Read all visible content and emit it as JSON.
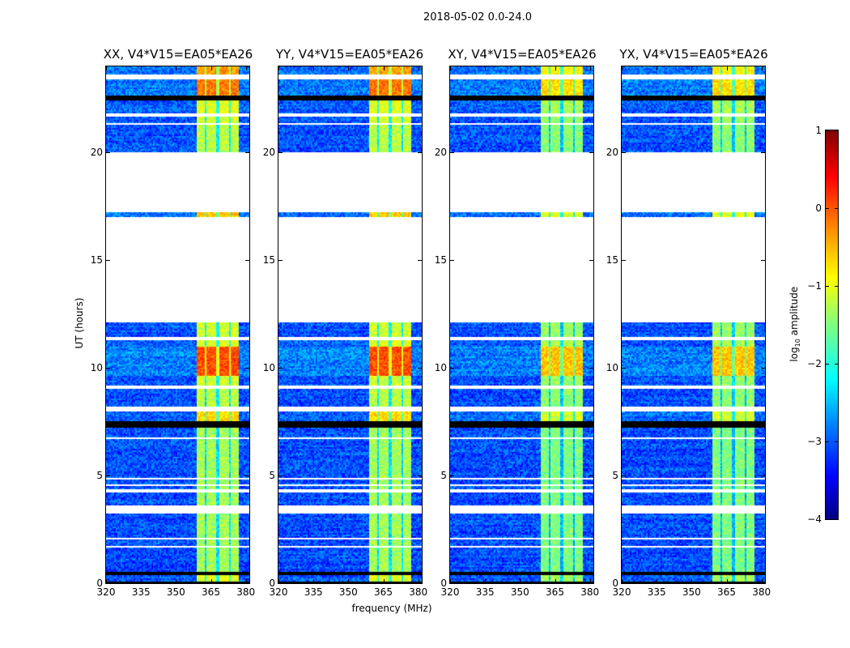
{
  "chart_data": {
    "type": "heatmap",
    "suptitle": "2018-05-02 0.0-24.0",
    "xlabel": "frequency (MHz)",
    "ylabel": "UT (hours)",
    "xlim": [
      320,
      381.5
    ],
    "ylim": [
      0,
      24
    ],
    "xticks": [
      320,
      335,
      350,
      365,
      380
    ],
    "yticks": [
      0,
      5,
      10,
      15,
      20
    ],
    "colorbar": {
      "label_prefix": "log",
      "label_sub": "10",
      "label_suffix": " amplitude",
      "range": [
        -4,
        1
      ],
      "ticks": [
        "1",
        "0",
        "−1",
        "−2",
        "−3",
        "−4"
      ],
      "tick_values": [
        1,
        0,
        -1,
        -2,
        -3,
        -4
      ],
      "colormap": "jet"
    },
    "band_mhz": [
      358.6,
      377.2
    ],
    "band_notches_mhz": [
      362.6,
      367.8,
      373.0
    ],
    "background_level": -3.0,
    "time_segments": [
      {
        "start": 0.0,
        "end": 0.05,
        "kind": "black"
      },
      {
        "start": 0.05,
        "end": 0.4,
        "kind": "data",
        "boost": 0.3
      },
      {
        "start": 0.4,
        "end": 0.5,
        "kind": "black"
      },
      {
        "start": 0.5,
        "end": 1.65,
        "kind": "data",
        "boost": 0
      },
      {
        "start": 1.65,
        "end": 1.72,
        "kind": "flag"
      },
      {
        "start": 1.72,
        "end": 2.0,
        "kind": "data",
        "boost": 0
      },
      {
        "start": 2.0,
        "end": 2.07,
        "kind": "flag"
      },
      {
        "start": 2.07,
        "end": 3.25,
        "kind": "data",
        "boost": 0
      },
      {
        "start": 3.25,
        "end": 3.6,
        "kind": "flag"
      },
      {
        "start": 3.6,
        "end": 4.25,
        "kind": "data",
        "boost": 0
      },
      {
        "start": 4.25,
        "end": 4.35,
        "kind": "flag"
      },
      {
        "start": 4.35,
        "end": 4.55,
        "kind": "data",
        "boost": 0
      },
      {
        "start": 4.55,
        "end": 4.62,
        "kind": "flag"
      },
      {
        "start": 4.62,
        "end": 4.8,
        "kind": "data",
        "boost": 0
      },
      {
        "start": 4.8,
        "end": 4.86,
        "kind": "flag"
      },
      {
        "start": 4.86,
        "end": 6.7,
        "kind": "data",
        "boost": 0
      },
      {
        "start": 6.7,
        "end": 6.75,
        "kind": "flag"
      },
      {
        "start": 6.75,
        "end": 7.2,
        "kind": "data",
        "boost": 0
      },
      {
        "start": 7.2,
        "end": 7.55,
        "kind": "black"
      },
      {
        "start": 7.55,
        "end": 8.0,
        "kind": "data",
        "boost": 0.6
      },
      {
        "start": 8.0,
        "end": 8.2,
        "kind": "flag"
      },
      {
        "start": 8.2,
        "end": 9.0,
        "kind": "data",
        "boost": 0.1
      },
      {
        "start": 9.0,
        "end": 9.2,
        "kind": "flag"
      },
      {
        "start": 9.2,
        "end": 9.6,
        "kind": "data",
        "boost": 0.2
      },
      {
        "start": 9.6,
        "end": 11.0,
        "kind": "data",
        "boost": 1.3
      },
      {
        "start": 11.0,
        "end": 11.3,
        "kind": "data",
        "boost": 0.3
      },
      {
        "start": 11.3,
        "end": 11.4,
        "kind": "flag"
      },
      {
        "start": 11.4,
        "end": 12.1,
        "kind": "data",
        "boost": 0.2
      },
      {
        "start": 12.1,
        "end": 17.0,
        "kind": "flag"
      },
      {
        "start": 17.0,
        "end": 17.2,
        "kind": "data",
        "boost": 0.7
      },
      {
        "start": 17.2,
        "end": 20.0,
        "kind": "flag"
      },
      {
        "start": 20.0,
        "end": 21.3,
        "kind": "data",
        "boost": 0.1
      },
      {
        "start": 21.3,
        "end": 21.4,
        "kind": "flag"
      },
      {
        "start": 21.4,
        "end": 21.7,
        "kind": "data",
        "boost": 0.2
      },
      {
        "start": 21.7,
        "end": 21.85,
        "kind": "flag"
      },
      {
        "start": 21.85,
        "end": 22.4,
        "kind": "data",
        "boost": 0.3
      },
      {
        "start": 22.4,
        "end": 22.65,
        "kind": "black"
      },
      {
        "start": 22.65,
        "end": 23.4,
        "kind": "data",
        "boost": 1.1
      },
      {
        "start": 23.4,
        "end": 23.65,
        "kind": "flag"
      },
      {
        "start": 23.65,
        "end": 24.0,
        "kind": "data",
        "boost": 0.9
      }
    ],
    "panels": [
      {
        "title": "XX, V4*V15=EA05*EA26",
        "band_level": -1.3
      },
      {
        "title": "YY, V4*V15=EA05*EA26",
        "band_level": -1.3
      },
      {
        "title": "XY, V4*V15=EA05*EA26",
        "band_level": -1.5
      },
      {
        "title": "YX, V4*V15=EA05*EA26",
        "band_level": -1.5
      }
    ]
  }
}
